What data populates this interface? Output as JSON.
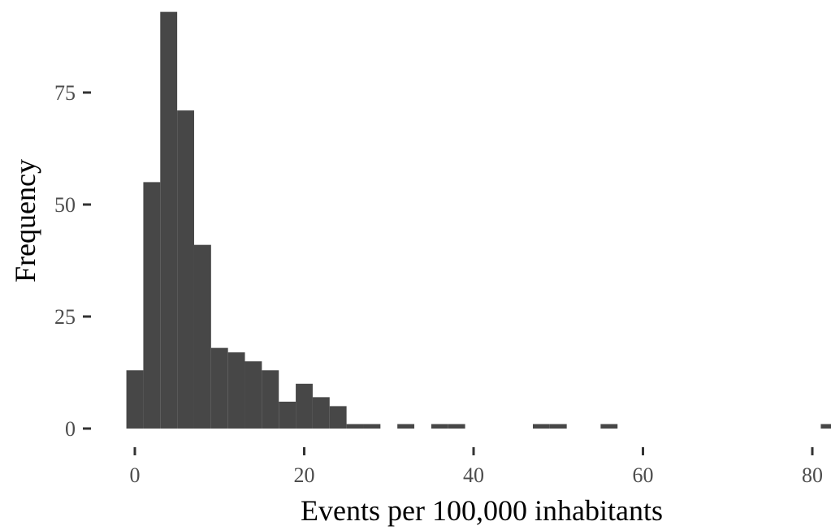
{
  "chart_data": {
    "type": "bar",
    "title": "",
    "xlabel": "Events per 100,000 inhabitants",
    "ylabel": "Frequency",
    "xlim": [
      -1,
      82
    ],
    "ylim": [
      0,
      93
    ],
    "xticks": [
      0,
      20,
      40,
      60,
      80
    ],
    "xtick_labels": [
      "0",
      "20",
      "40",
      "60",
      "80"
    ],
    "yticks": [
      0,
      25,
      50,
      75
    ],
    "ytick_labels": [
      "0",
      "25",
      "50",
      "75"
    ],
    "grid": false,
    "bin_width": 2,
    "bins": [
      {
        "x0": -1,
        "x1": 1,
        "count": 13
      },
      {
        "x0": 1,
        "x1": 3,
        "count": 55
      },
      {
        "x0": 3,
        "x1": 5,
        "count": 93
      },
      {
        "x0": 5,
        "x1": 7,
        "count": 71
      },
      {
        "x0": 7,
        "x1": 9,
        "count": 41
      },
      {
        "x0": 9,
        "x1": 11,
        "count": 18
      },
      {
        "x0": 11,
        "x1": 13,
        "count": 17
      },
      {
        "x0": 13,
        "x1": 15,
        "count": 15
      },
      {
        "x0": 15,
        "x1": 17,
        "count": 13
      },
      {
        "x0": 17,
        "x1": 19,
        "count": 6
      },
      {
        "x0": 19,
        "x1": 21,
        "count": 10
      },
      {
        "x0": 21,
        "x1": 23,
        "count": 7
      },
      {
        "x0": 23,
        "x1": 25,
        "count": 5
      },
      {
        "x0": 25,
        "x1": 27,
        "count": 1
      },
      {
        "x0": 27,
        "x1": 29,
        "count": 1
      },
      {
        "x0": 31,
        "x1": 33,
        "count": 1
      },
      {
        "x0": 35,
        "x1": 37,
        "count": 1
      },
      {
        "x0": 37,
        "x1": 39,
        "count": 1
      },
      {
        "x0": 47,
        "x1": 49,
        "count": 1
      },
      {
        "x0": 49,
        "x1": 51,
        "count": 1
      },
      {
        "x0": 55,
        "x1": 57,
        "count": 1
      },
      {
        "x0": 81,
        "x1": 83,
        "count": 1
      }
    ],
    "colors": {
      "bar": "#474747",
      "tick": "#333333",
      "tick_label": "#4d4d4d",
      "axis_title": "#000000"
    }
  }
}
